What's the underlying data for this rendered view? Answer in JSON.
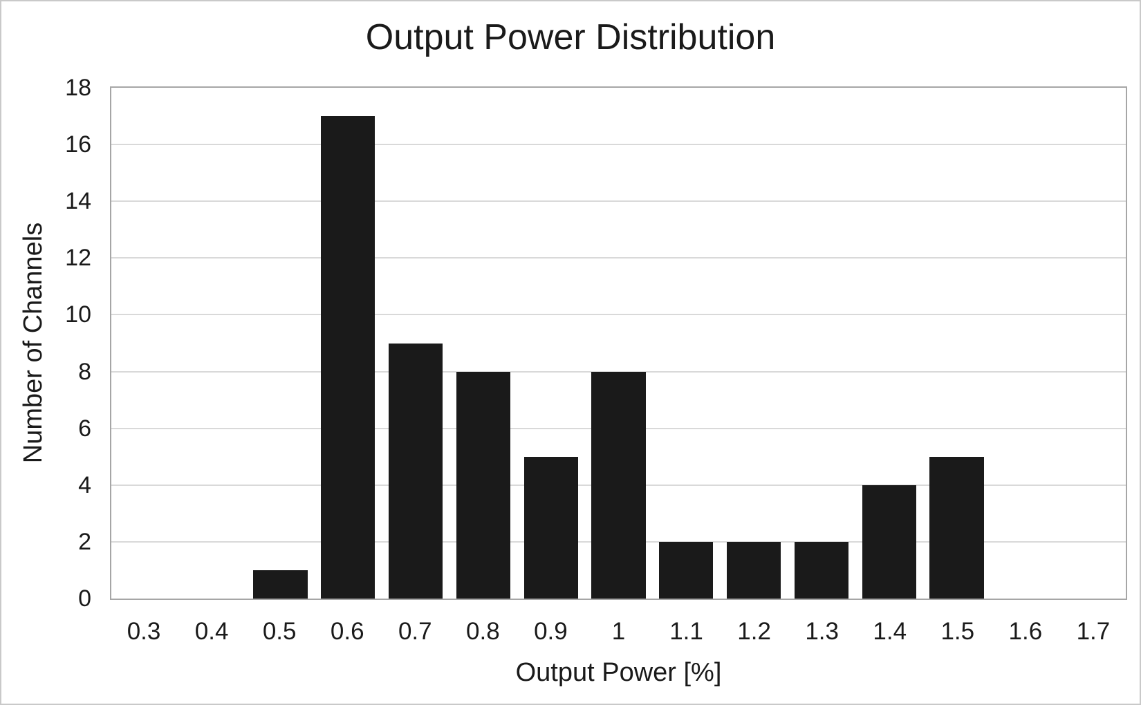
{
  "chart_data": {
    "type": "bar",
    "title": "Output Power Distribution",
    "xlabel": "Output Power [%]",
    "ylabel": "Number of Channels",
    "categories": [
      "0.3",
      "0.4",
      "0.5",
      "0.6",
      "0.7",
      "0.8",
      "0.9",
      "1",
      "1.1",
      "1.2",
      "1.3",
      "1.4",
      "1.5",
      "1.6",
      "1.7"
    ],
    "values": [
      0,
      0,
      1,
      17,
      9,
      8,
      5,
      8,
      2,
      2,
      2,
      4,
      5,
      0,
      0
    ],
    "ylim": [
      0,
      18
    ],
    "yticks": [
      0,
      2,
      4,
      6,
      8,
      10,
      12,
      14,
      16,
      18
    ],
    "grid": "horizontal",
    "legend": "none",
    "bar_color": "#1a1a1a",
    "gridline_color": "#d9d9d9",
    "plot_border_color": "#a6a6a6",
    "text_color": "#1a1a1a",
    "background_color": "#ffffff"
  }
}
